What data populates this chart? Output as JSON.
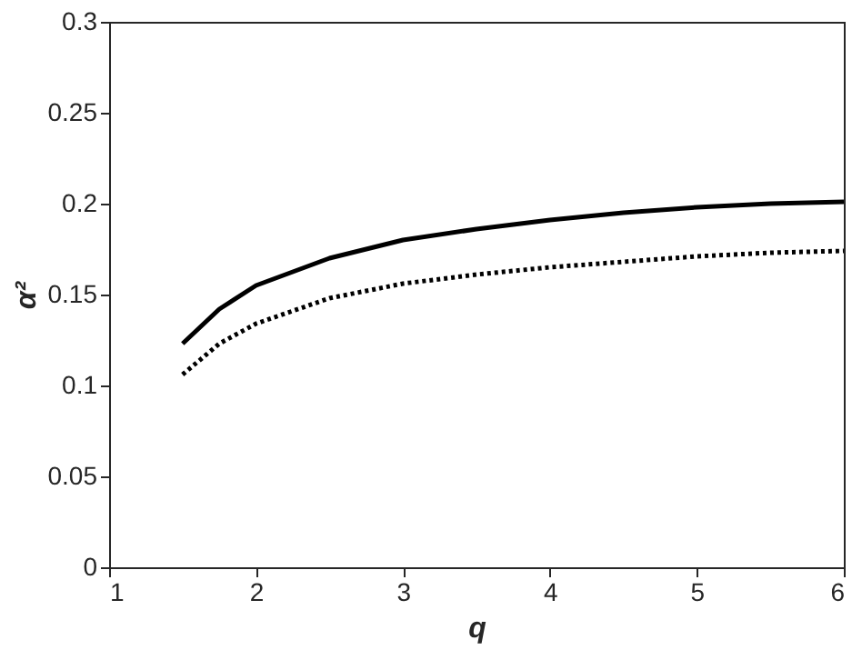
{
  "chart_data": {
    "type": "line",
    "xlabel": "q",
    "ylabel": "α²",
    "xlim": [
      1,
      6
    ],
    "ylim": [
      0,
      0.3
    ],
    "xticks": [
      1,
      2,
      3,
      4,
      5,
      6
    ],
    "yticks": [
      0,
      0.05,
      0.1,
      0.15,
      0.2,
      0.25,
      0.3
    ],
    "grid": false,
    "x": [
      1.5,
      1.75,
      2,
      2.5,
      3,
      3.5,
      4,
      4.5,
      5,
      5.5,
      6
    ],
    "series": [
      {
        "color": "#000000",
        "line_style": "solid",
        "values": [
          0.123,
          0.142,
          0.155,
          0.17,
          0.18,
          0.186,
          0.191,
          0.195,
          0.198,
          0.2,
          0.201
        ]
      },
      {
        "color": "#000000",
        "line_style": "dotted",
        "values": [
          0.106,
          0.123,
          0.134,
          0.148,
          0.156,
          0.161,
          0.165,
          0.168,
          0.171,
          0.173,
          0.174
        ]
      }
    ]
  }
}
